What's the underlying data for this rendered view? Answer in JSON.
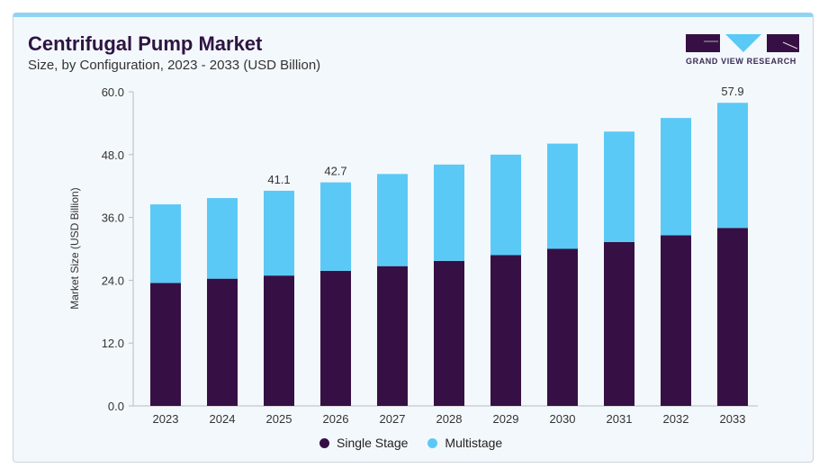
{
  "header": {
    "title": "Centrifugal Pump Market",
    "subtitle": "Size, by Configuration, 2023 - 2033 (USD Billion)",
    "logo_text": "GRAND VIEW RESEARCH"
  },
  "chart_data": {
    "type": "bar",
    "stacked": true,
    "title": "Centrifugal Pump Market",
    "subtitle": "Size, by Configuration, 2023 - 2033 (USD Billion)",
    "xlabel": "",
    "ylabel": "Market Size (USD Billion)",
    "ylim": [
      0,
      60
    ],
    "yticks": [
      "0.0",
      "12.0",
      "24.0",
      "36.0",
      "48.0",
      "60.0"
    ],
    "categories": [
      "2023",
      "2024",
      "2025",
      "2026",
      "2027",
      "2028",
      "2029",
      "2030",
      "2031",
      "2032",
      "2033"
    ],
    "series": [
      {
        "name": "Single Stage",
        "color": "#361045",
        "values": [
          23.5,
          24.3,
          24.9,
          25.8,
          26.7,
          27.7,
          28.8,
          30.0,
          31.3,
          32.6,
          34.0
        ]
      },
      {
        "name": "Multistage",
        "color": "#5bc9f5",
        "values": [
          15.0,
          15.4,
          16.2,
          16.9,
          17.6,
          18.4,
          19.2,
          20.1,
          21.1,
          22.4,
          23.9
        ]
      }
    ],
    "data_labels": {
      "2025": "41.1",
      "2026": "42.7",
      "2033": "57.9"
    },
    "legend_position": "bottom"
  }
}
